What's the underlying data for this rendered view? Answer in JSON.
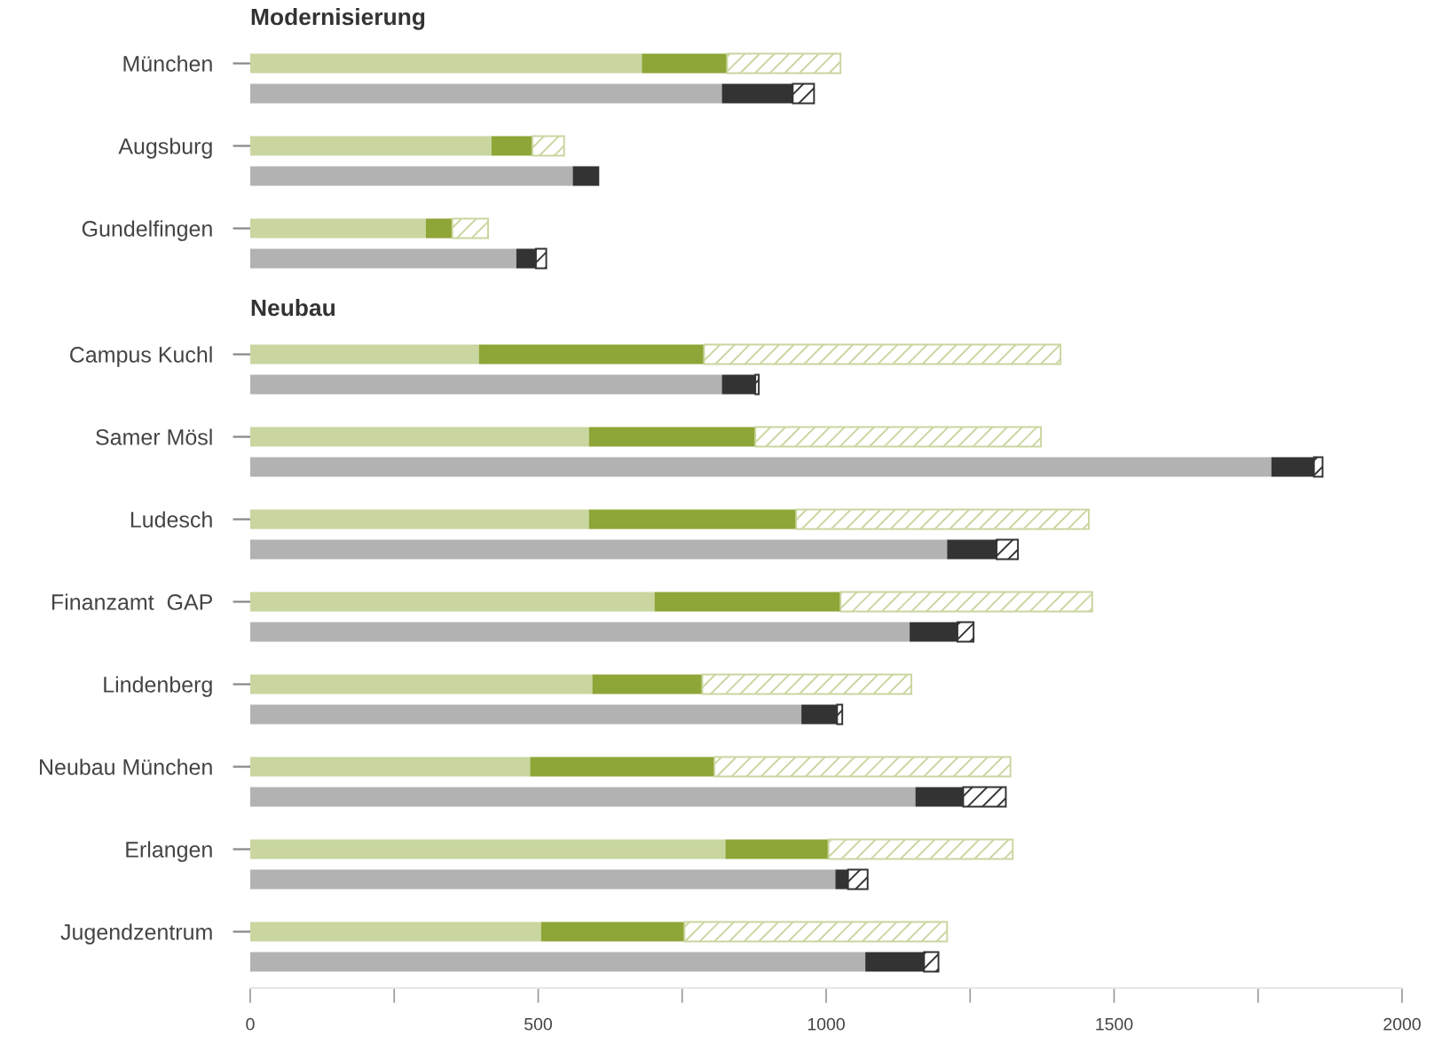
{
  "chart_data": [
    {
      "type": "bar",
      "orientation": "horizontal",
      "stacked": true,
      "title": "Modernisierung",
      "categories": [
        "München",
        null,
        "Augsburg",
        null,
        "Gundelfingen",
        null
      ],
      "series": [
        {
          "color": "#c9d6a0",
          "values": [
            680,
            null,
            419,
            null,
            305,
            null
          ]
        },
        {
          "color": "#8ea537",
          "values": [
            148,
            null,
            71,
            null,
            46,
            null
          ]
        },
        {
          "color": "#c9d6a0",
          "values": [
            197,
            null,
            55,
            null,
            62,
            null
          ]
        },
        {
          "color": "#b2b2b2",
          "values": [
            null,
            819,
            null,
            560,
            null,
            462
          ]
        },
        {
          "color": "#333333",
          "values": [
            null,
            123,
            null,
            46,
            null,
            34
          ]
        },
        {
          "color": "#333333",
          "values": [
            null,
            37,
            null,
            null,
            null,
            18
          ]
        }
      ],
      "xlim": [
        0,
        2000
      ],
      "tick_labels": "y",
      "grid": false,
      "legend": false
    },
    {
      "type": "bar",
      "orientation": "horizontal",
      "stacked": true,
      "title": "Neubau",
      "categories": [
        "Campus Kuchl",
        null,
        "Samer Mösl",
        null,
        "Ludesch",
        null,
        "Finanzamt  GAP",
        null,
        "Lindenberg",
        null,
        "Neubau München",
        null,
        "Erlangen",
        null,
        "Jugendzentrum",
        null
      ],
      "series": [
        {
          "color": "#c9d6a0",
          "values": [
            397,
            null,
            588,
            null,
            588,
            null,
            702,
            null,
            594,
            null,
            486,
            null,
            825,
            null,
            505,
            null
          ]
        },
        {
          "color": "#8ea537",
          "values": [
            391,
            null,
            289,
            null,
            360,
            null,
            323,
            null,
            191,
            null,
            320,
            null,
            179,
            null,
            249,
            null
          ]
        },
        {
          "color": "#c9d6a0",
          "values": [
            619,
            null,
            496,
            null,
            508,
            null,
            437,
            null,
            363,
            null,
            514,
            null,
            320,
            null,
            456,
            null
          ]
        },
        {
          "color": "#b2b2b2",
          "values": [
            null,
            819,
            null,
            1773,
            null,
            1210,
            null,
            1145,
            null,
            957,
            null,
            1155,
            null,
            1016,
            null,
            1068
          ]
        },
        {
          "color": "#333333",
          "values": [
            null,
            58,
            null,
            74,
            null,
            86,
            null,
            83,
            null,
            62,
            null,
            83,
            null,
            22,
            null,
            102
          ]
        },
        {
          "color": "#333333",
          "values": [
            null,
            6,
            null,
            15,
            null,
            37,
            null,
            28,
            null,
            9,
            null,
            74,
            null,
            34,
            null,
            25
          ]
        }
      ],
      "xlim": [
        0,
        2000
      ],
      "xticks": [
        0,
        {
          "value": 250,
          "label": null
        },
        500,
        {
          "value": 750,
          "label": null
        },
        1000,
        {
          "value": 1250,
          "label": null
        },
        1500,
        {
          "value": 1750,
          "label": null
        },
        2000
      ],
      "grid": false,
      "legend": false
    }
  ]
}
